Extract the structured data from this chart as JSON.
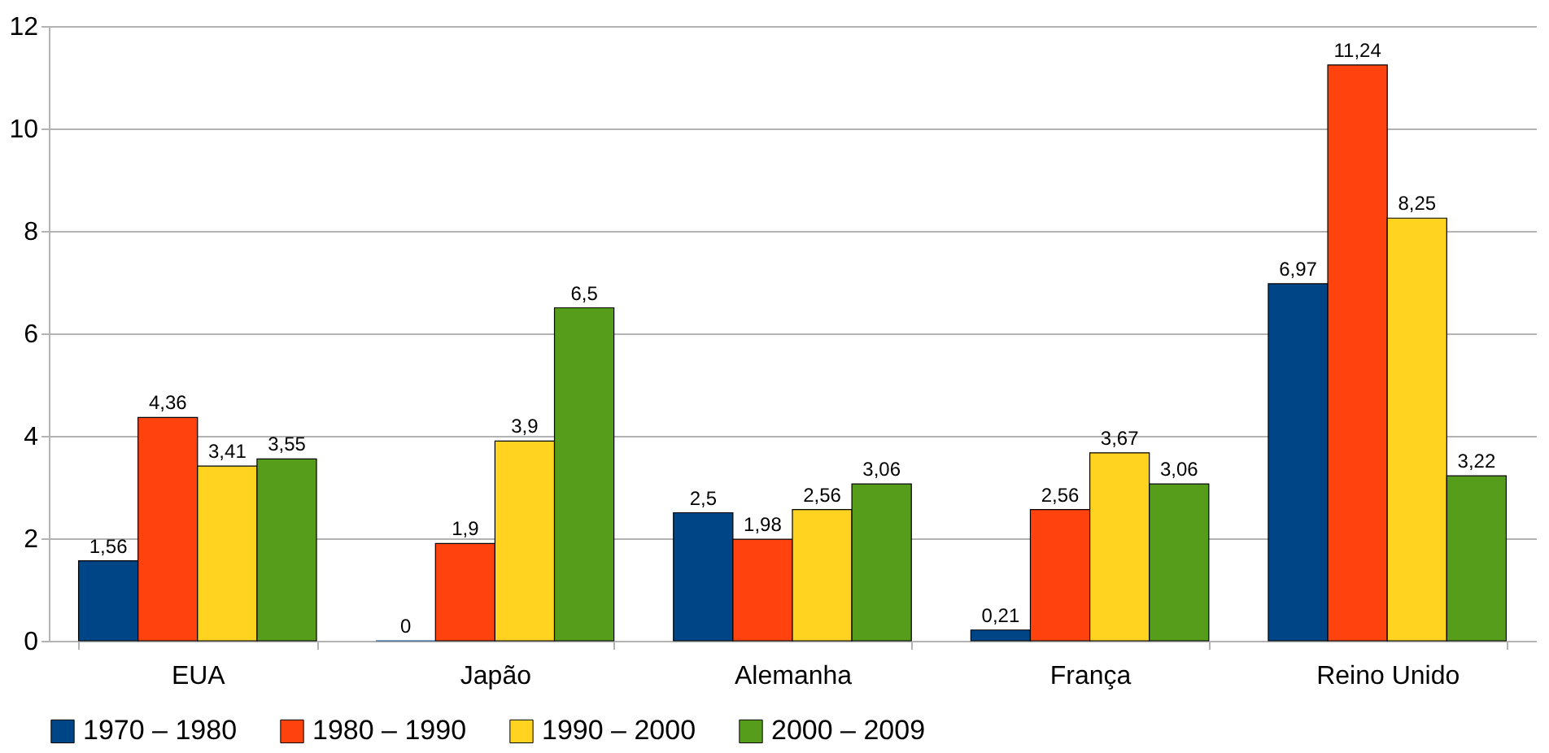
{
  "chart_data": {
    "type": "bar",
    "categories": [
      "EUA",
      "Japão",
      "Alemanha",
      "França",
      "Reino Unido"
    ],
    "series": [
      {
        "name": "1970 – 1980",
        "color": "#004586",
        "values": [
          1.56,
          0,
          2.5,
          0.21,
          6.97
        ],
        "value_labels": [
          "1,56",
          "0",
          "2,5",
          "0,21",
          "6,97"
        ]
      },
      {
        "name": "1980 – 1990",
        "color": "#ff420e",
        "values": [
          4.36,
          1.9,
          1.98,
          2.56,
          11.24
        ],
        "value_labels": [
          "4,36",
          "1,9",
          "1,98",
          "2,56",
          "11,24"
        ]
      },
      {
        "name": "1990 – 2000",
        "color": "#ffd320",
        "values": [
          3.41,
          3.9,
          2.56,
          3.67,
          8.25
        ],
        "value_labels": [
          "3,41",
          "3,9",
          "2,56",
          "3,67",
          "8,25"
        ]
      },
      {
        "name": "2000 – 2009",
        "color": "#579d1c",
        "values": [
          3.55,
          6.5,
          3.06,
          3.06,
          3.22
        ],
        "value_labels": [
          "3,55",
          "6,5",
          "3,06",
          "3,06",
          "3,22"
        ]
      }
    ],
    "ylim": [
      0,
      12
    ],
    "yticks": [
      0,
      2,
      4,
      6,
      8,
      10,
      12
    ],
    "grid": "y",
    "legend": "bottom"
  }
}
